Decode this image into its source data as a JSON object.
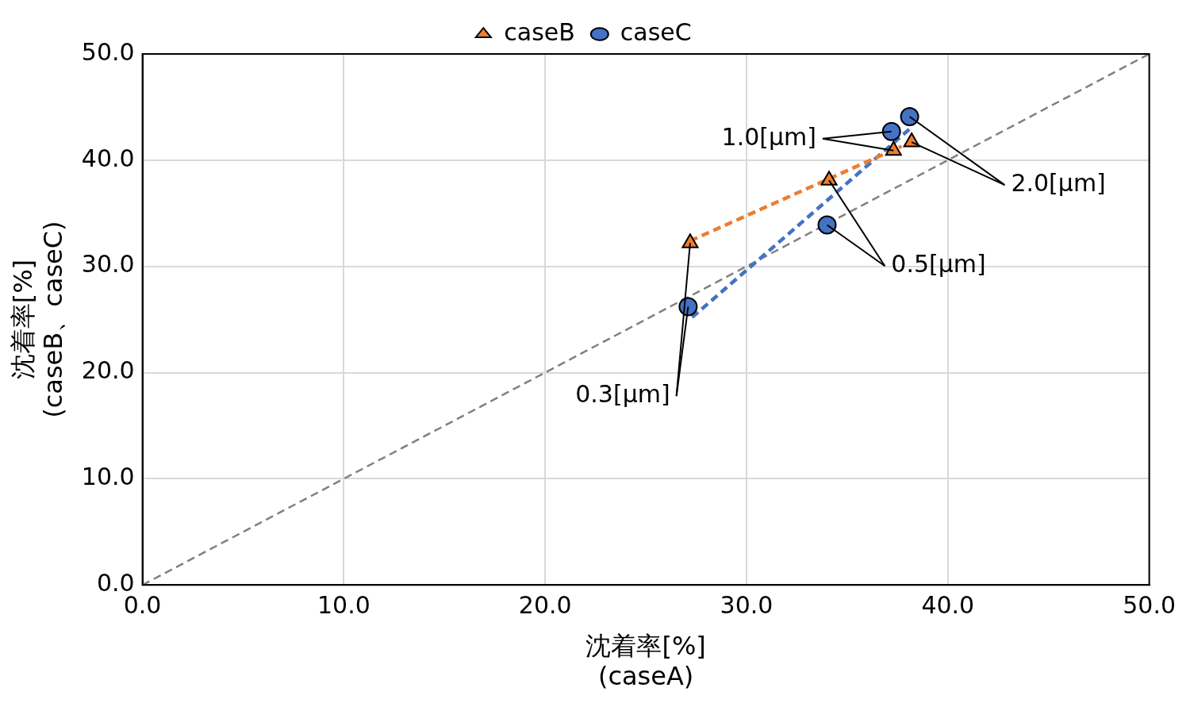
{
  "chart_data": {
    "type": "scatter",
    "xlabel": "沈着率[%]\n(caseA)",
    "ylabel": "沈着率[%]\n(caseB、caseC)",
    "xlim": [
      0,
      50
    ],
    "ylim": [
      0,
      50
    ],
    "xticks": [
      {
        "value": 0,
        "label": "0.0"
      },
      {
        "value": 10,
        "label": "10.0"
      },
      {
        "value": 20,
        "label": "20.0"
      },
      {
        "value": 30,
        "label": "30.0"
      },
      {
        "value": 40,
        "label": "40.0"
      },
      {
        "value": 50,
        "label": "50.0"
      }
    ],
    "yticks": [
      {
        "value": 0,
        "label": "0.0"
      },
      {
        "value": 10,
        "label": "10.0"
      },
      {
        "value": 20,
        "label": "20.0"
      },
      {
        "value": 30,
        "label": "30.0"
      },
      {
        "value": 40,
        "label": "40.0"
      },
      {
        "value": 50,
        "label": "50.0"
      }
    ],
    "grid": true,
    "legend": "top",
    "series": [
      {
        "name": "caseB",
        "type": "scatter",
        "marker": "triangle",
        "color": "#ed7d31",
        "x": [
          27.2,
          34.1,
          37.3,
          38.2
        ],
        "values": [
          32.2,
          38.1,
          40.9,
          41.7
        ]
      },
      {
        "name": "caseC",
        "type": "scatter",
        "marker": "circle",
        "color": "#4472c4",
        "x": [
          27.1,
          34.0,
          37.2,
          38.1
        ],
        "values": [
          26.2,
          33.9,
          42.7,
          44.1
        ]
      },
      {
        "type": "line",
        "marker": "none",
        "line_style": "dashed",
        "color": "#ed7d31",
        "x": [
          27.2,
          37.7
        ],
        "values": [
          32.4,
          41.3
        ]
      },
      {
        "type": "line",
        "marker": "none",
        "line_style": "dashed",
        "color": "#4472c4",
        "x": [
          27.3,
          38.2
        ],
        "values": [
          25.2,
          43.1
        ]
      },
      {
        "type": "line",
        "marker": "none",
        "line_style": "dashed",
        "color": "#808080",
        "x": [
          0,
          50
        ],
        "values": [
          0,
          50
        ]
      }
    ],
    "annotations": [
      {
        "text": "0.3[μm]",
        "x": 27.2,
        "y": 32.2
      },
      {
        "text": "0.5[μm]",
        "x": 34.1,
        "y": 38.1
      },
      {
        "text": "1.0[μm]",
        "x": 37.3,
        "y": 40.9
      },
      {
        "text": "2.0[μm]",
        "x": 38.2,
        "y": 41.7
      }
    ]
  }
}
